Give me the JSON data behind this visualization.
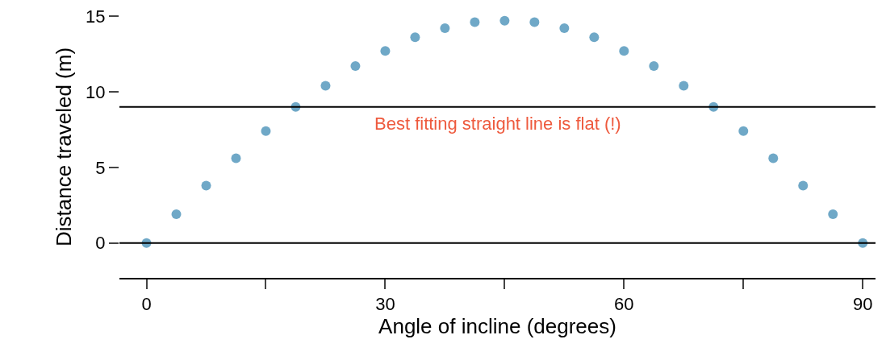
{
  "chart_data": {
    "type": "scatter",
    "xlabel": "Angle of incline (degrees)",
    "ylabel": "Distance traveled (m)",
    "x": [
      0,
      3.75,
      7.5,
      11.25,
      15,
      18.75,
      22.5,
      26.25,
      30,
      33.75,
      37.5,
      41.25,
      45,
      48.75,
      52.5,
      56.25,
      60,
      63.75,
      67.5,
      71.25,
      75,
      78.75,
      82.5,
      86.25,
      90
    ],
    "series": [
      {
        "color": "#6fa8c7",
        "values": [
          0,
          1.9,
          3.8,
          5.6,
          7.4,
          9.0,
          10.4,
          11.7,
          12.7,
          13.6,
          14.2,
          14.6,
          14.7,
          14.6,
          14.2,
          13.6,
          12.7,
          11.7,
          10.4,
          9.0,
          7.4,
          5.6,
          3.8,
          1.9,
          0
        ]
      }
    ],
    "ref_lines": [
      {
        "axis": "y",
        "value": 9,
        "label": "Best fitting straight line is flat (!)",
        "color": "#000000"
      },
      {
        "axis": "y",
        "value": 0,
        "color": "#000000"
      }
    ],
    "xlim": [
      -3.4,
      91.6
    ],
    "ylim": [
      -2.3,
      15
    ],
    "xticks": [
      0,
      {
        "value": 15,
        "label": null
      },
      30,
      {
        "value": 45,
        "label": null
      },
      60,
      {
        "value": 75,
        "label": null
      },
      90
    ],
    "yticks": [
      0,
      5,
      10,
      15
    ],
    "grid": false,
    "marker": "circle"
  }
}
